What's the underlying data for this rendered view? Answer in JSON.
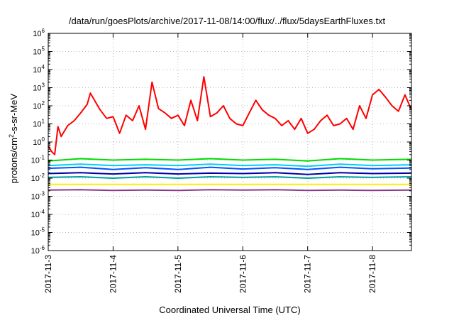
{
  "chart_data": {
    "type": "line",
    "title": "/data/run/goesPlots/archive/2017-11-08/14:00/flux/../flux/5daysEarthFluxes.txt",
    "xlabel": "Coordinated Universal Time (UTC)",
    "ylabel": {
      "prefix": "protons/cm",
      "sup": "2",
      "suffix": "-s-sr-MeV"
    },
    "y_scale": "log",
    "ylim_exponent": [
      -6,
      6
    ],
    "y_ticks": [
      {
        "base": "10",
        "exp": "-6"
      },
      {
        "base": "10",
        "exp": "-5"
      },
      {
        "base": "10",
        "exp": "-4"
      },
      {
        "base": "10",
        "exp": "-3"
      },
      {
        "base": "10",
        "exp": "-2"
      },
      {
        "base": "10",
        "exp": "-1"
      },
      {
        "base": "10",
        "exp": "0"
      },
      {
        "base": "10",
        "exp": "1"
      },
      {
        "base": "10",
        "exp": "2"
      },
      {
        "base": "10",
        "exp": "3"
      },
      {
        "base": "10",
        "exp": "4"
      },
      {
        "base": "10",
        "exp": "5"
      },
      {
        "base": "10",
        "exp": "6"
      }
    ],
    "x_ticks": [
      "2017-11-3",
      "2017-11-4",
      "2017-11-5",
      "2017-11-6",
      "2017-11-7",
      "2017-11-8"
    ],
    "x_tick_offsets_days": [
      0,
      1,
      2,
      3,
      4,
      5
    ],
    "xlim_days": [
      0,
      5.6
    ],
    "grid": true,
    "series": [
      {
        "color": "#ff0000",
        "x": [
          0,
          0.05,
          0.1,
          0.15,
          0.2,
          0.3,
          0.4,
          0.5,
          0.6,
          0.65,
          0.8,
          0.9,
          1.0,
          1.1,
          1.2,
          1.3,
          1.4,
          1.5,
          1.6,
          1.7,
          1.8,
          1.9,
          2.0,
          2.1,
          2.2,
          2.3,
          2.4,
          2.5,
          2.6,
          2.7,
          2.8,
          2.9,
          3.0,
          3.1,
          3.2,
          3.3,
          3.4,
          3.5,
          3.6,
          3.7,
          3.8,
          3.9,
          4.0,
          4.1,
          4.2,
          4.3,
          4.4,
          4.5,
          4.6,
          4.7,
          4.8,
          4.9,
          5.0,
          5.1,
          5.2,
          5.3,
          5.4,
          5.5,
          5.6
        ],
        "y": [
          0.6,
          0.3,
          0.2,
          7,
          2,
          8,
          15,
          40,
          120,
          500,
          60,
          20,
          25,
          3,
          30,
          15,
          100,
          5,
          2000,
          70,
          40,
          20,
          30,
          8,
          200,
          15,
          4000,
          25,
          40,
          100,
          20,
          10,
          8,
          40,
          200,
          60,
          30,
          20,
          8,
          15,
          5,
          20,
          3,
          5,
          15,
          30,
          8,
          10,
          20,
          5,
          100,
          20,
          400,
          800,
          300,
          100,
          50,
          400,
          60
        ]
      },
      {
        "color": "#00dd00",
        "x": [
          0,
          0.5,
          1.0,
          1.5,
          2.0,
          2.5,
          3.0,
          3.5,
          4.0,
          4.5,
          5.0,
          5.6
        ],
        "y": [
          0.09,
          0.12,
          0.1,
          0.11,
          0.1,
          0.12,
          0.1,
          0.11,
          0.09,
          0.12,
          0.1,
          0.11
        ]
      },
      {
        "color": "#00ccff",
        "x": [
          0,
          0.5,
          1.0,
          1.5,
          2.0,
          2.5,
          3.0,
          3.5,
          4.0,
          4.5,
          5.0,
          5.6
        ],
        "y": [
          0.05,
          0.06,
          0.05,
          0.055,
          0.05,
          0.06,
          0.05,
          0.055,
          0.045,
          0.06,
          0.05,
          0.055
        ]
      },
      {
        "color": "#0055ff",
        "x": [
          0,
          0.5,
          1.0,
          1.5,
          2.0,
          2.5,
          3.0,
          3.5,
          4.0,
          4.5,
          5.0,
          5.6
        ],
        "y": [
          0.035,
          0.04,
          0.03,
          0.038,
          0.03,
          0.04,
          0.032,
          0.038,
          0.03,
          0.04,
          0.033,
          0.036
        ]
      },
      {
        "color": "#0000aa",
        "x": [
          0,
          0.5,
          1.0,
          1.5,
          2.0,
          2.5,
          3.0,
          3.5,
          4.0,
          4.5,
          5.0,
          5.6
        ],
        "y": [
          0.018,
          0.02,
          0.017,
          0.02,
          0.017,
          0.019,
          0.018,
          0.02,
          0.016,
          0.02,
          0.018,
          0.019
        ]
      },
      {
        "color": "#00a0a0",
        "x": [
          0,
          0.5,
          1.0,
          1.5,
          2.0,
          2.5,
          3.0,
          3.5,
          4.0,
          4.5,
          5.0,
          5.6
        ],
        "y": [
          0.011,
          0.012,
          0.01,
          0.012,
          0.01,
          0.012,
          0.011,
          0.012,
          0.01,
          0.012,
          0.011,
          0.012
        ]
      },
      {
        "color": "#ffee00",
        "x": [
          0,
          0.5,
          1.0,
          1.5,
          2.0,
          2.5,
          3.0,
          3.5,
          4.0,
          4.5,
          5.0,
          5.6
        ],
        "y": [
          0.0045,
          0.0045,
          0.0045,
          0.0045,
          0.0045,
          0.0045,
          0.0045,
          0.0045,
          0.0045,
          0.0045,
          0.0045,
          0.0045
        ]
      },
      {
        "color": "#8b3a8b",
        "x": [
          0,
          0.5,
          1.0,
          1.5,
          2.0,
          2.5,
          3.0,
          3.5,
          4.0,
          4.5,
          5.0,
          5.6
        ],
        "y": [
          0.0022,
          0.0023,
          0.0021,
          0.0022,
          0.0021,
          0.0023,
          0.0022,
          0.0023,
          0.0021,
          0.0022,
          0.0021,
          0.0022
        ]
      }
    ]
  }
}
